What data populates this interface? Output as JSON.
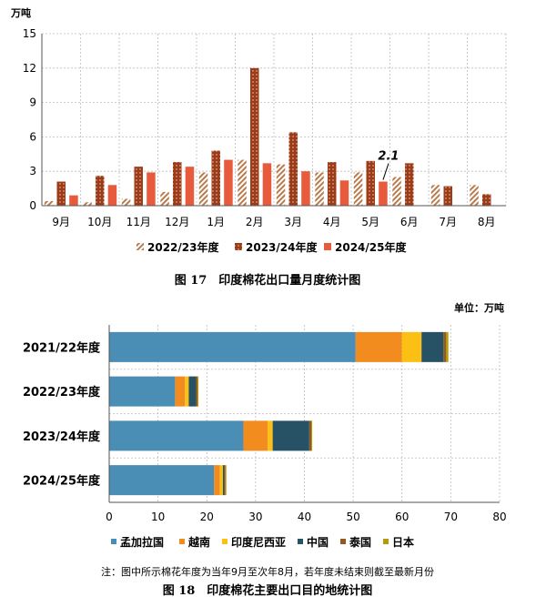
{
  "chart_data": [
    {
      "type": "bar",
      "unit_label": "万吨",
      "categories": [
        "9月",
        "10月",
        "11月",
        "12月",
        "1月",
        "2月",
        "3月",
        "4月",
        "5月",
        "6月",
        "7月",
        "8月"
      ],
      "series": [
        {
          "name": "2022/23年度",
          "color": "#c8895a",
          "pattern": "hatch",
          "values": [
            0.4,
            0.3,
            0.6,
            1.2,
            2.9,
            4.0,
            3.6,
            2.9,
            2.9,
            2.5,
            1.8,
            1.8
          ]
        },
        {
          "name": "2023/24年度",
          "color": "#a0401a",
          "pattern": "dots",
          "values": [
            2.1,
            2.6,
            3.4,
            3.8,
            4.8,
            12.0,
            6.4,
            3.8,
            3.9,
            3.7,
            1.7,
            1.0
          ]
        },
        {
          "name": "2024/25年度",
          "color": "#e85a3c",
          "pattern": "solid",
          "values": [
            0.9,
            1.8,
            2.9,
            3.4,
            4.0,
            3.7,
            3.0,
            2.2,
            2.1,
            null,
            null,
            null
          ]
        }
      ],
      "ylim": [
        0,
        15
      ],
      "yticks": [
        0,
        3,
        6,
        9,
        12,
        15
      ],
      "grid": true,
      "legend_position": "bottom",
      "annotation": {
        "text": "2.1",
        "series": 2,
        "category": 8
      },
      "caption": "图 17　印度棉花出口量月度统计图"
    },
    {
      "type": "bar",
      "orientation": "horizontal",
      "stacked": true,
      "unit_label": "单位：万吨",
      "categories": [
        "2021/22年度",
        "2022/23年度",
        "2023/24年度",
        "2024/25年度"
      ],
      "series": [
        {
          "name": "孟加拉国",
          "color": "#4a8db5",
          "values": [
            50.5,
            13.5,
            27.5,
            21.5
          ]
        },
        {
          "name": "越南",
          "color": "#f28c1e",
          "values": [
            9.5,
            2.0,
            5.0,
            1.2
          ]
        },
        {
          "name": "印度尼西亚",
          "color": "#fcc015",
          "values": [
            4.0,
            0.8,
            1.0,
            0.6
          ]
        },
        {
          "name": "中国",
          "color": "#275266",
          "values": [
            4.5,
            1.5,
            7.5,
            0.3
          ]
        },
        {
          "name": "泰国",
          "color": "#8e5a26",
          "values": [
            0.5,
            0.3,
            0.4,
            0.2
          ]
        },
        {
          "name": "日本",
          "color": "#b59b0a",
          "values": [
            0.5,
            0.2,
            0.2,
            0.2
          ]
        }
      ],
      "xlim": [
        0,
        80
      ],
      "xticks": [
        0,
        10,
        20,
        30,
        40,
        50,
        60,
        70,
        80
      ],
      "grid": true,
      "legend_position": "bottom",
      "note": "注：图中所示棉花年度为当年9月至次年8月，若年度未结束则截至最新月份",
      "caption": "图 18　印度棉花主要出口目的地统计图"
    }
  ]
}
